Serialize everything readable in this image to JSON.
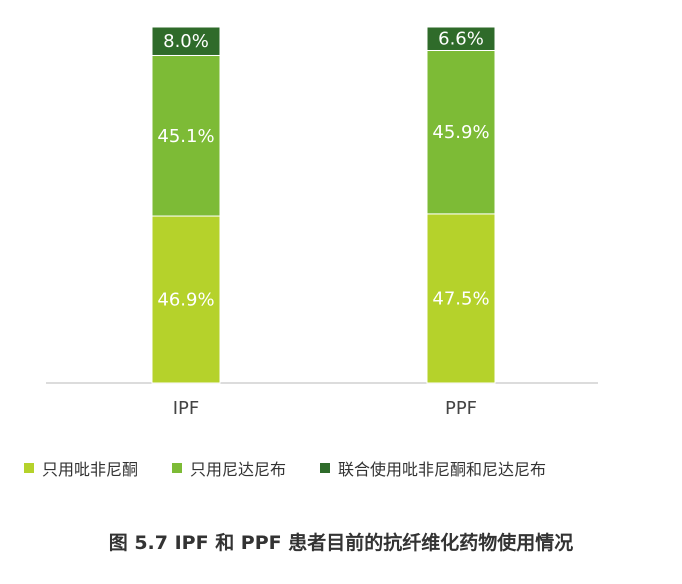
{
  "chart_data": {
    "type": "bar",
    "stacked": true,
    "categories": [
      "IPF",
      "PPF"
    ],
    "series": [
      {
        "name": "只用吡非尼酮",
        "values": [
          46.9,
          47.5
        ],
        "color": "#b5d22b"
      },
      {
        "name": "只用尼达尼布",
        "values": [
          45.1,
          45.9
        ],
        "color": "#7dbb36"
      },
      {
        "name": "联合使用吡非尼酮和尼达尼布",
        "values": [
          8.0,
          6.6
        ],
        "color": "#2f6b2a"
      }
    ],
    "data_labels": [
      [
        "46.9%",
        "47.5%"
      ],
      [
        "45.1%",
        "45.9%"
      ],
      [
        "8.0%",
        "6.6%"
      ]
    ],
    "ylim": [
      0,
      100
    ],
    "legend_position": "bottom",
    "grid": false
  },
  "caption": "图 5.7 IPF 和 PPF 患者目前的抗纤维化药物使用情况"
}
